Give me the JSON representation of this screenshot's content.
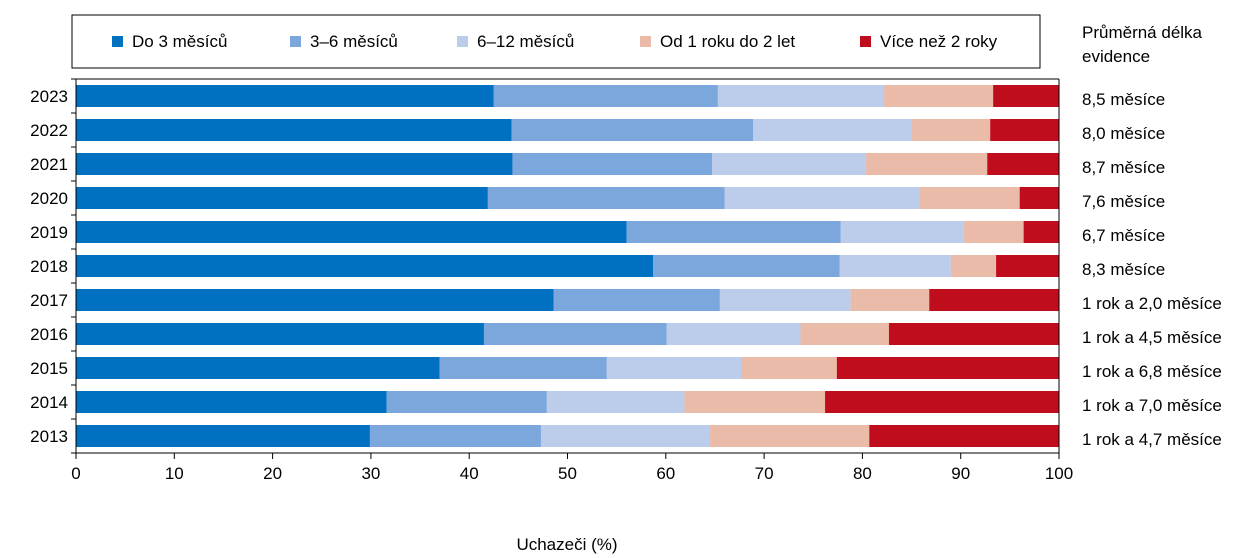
{
  "chart_data": {
    "type": "bar",
    "orientation": "horizontal",
    "stacked": true,
    "xlabel": "Uchazeči (%)",
    "xlim": [
      0,
      100
    ],
    "xticks": [
      0,
      10,
      20,
      30,
      40,
      50,
      60,
      70,
      80,
      90,
      100
    ],
    "legend_position": "top",
    "right_column_title": "Průměrná délka evidence",
    "categories": [
      "2023",
      "2022",
      "2021",
      "2020",
      "2019",
      "2018",
      "2017",
      "2016",
      "2015",
      "2014",
      "2013"
    ],
    "series": [
      {
        "name": "Do 3 měsíců",
        "color": "#0070c0",
        "values": [
          42.5,
          44.3,
          44.4,
          41.9,
          56.0,
          58.7,
          48.6,
          41.5,
          37.0,
          31.6,
          29.9
        ]
      },
      {
        "name": "3–6 měsíců",
        "color": "#7ba7dc",
        "values": [
          22.8,
          24.6,
          20.3,
          24.1,
          21.8,
          19.0,
          16.9,
          18.6,
          17.0,
          16.3,
          17.4
        ]
      },
      {
        "name": "6–12 měsíců",
        "color": "#bccceb",
        "values": [
          16.9,
          16.1,
          15.6,
          19.8,
          12.5,
          11.3,
          13.3,
          13.6,
          13.7,
          14.0,
          17.2
        ]
      },
      {
        "name": "Od 1 roku do 2 let",
        "color": "#ebbba9",
        "values": [
          11.1,
          8.0,
          12.4,
          10.2,
          6.1,
          4.6,
          8.0,
          9.0,
          9.7,
          14.3,
          16.2
        ]
      },
      {
        "name": "Více než 2 roky",
        "color": "#c00d1e",
        "values": [
          6.7,
          7.0,
          7.3,
          4.0,
          3.6,
          6.4,
          13.2,
          17.3,
          22.6,
          23.8,
          19.3
        ]
      }
    ],
    "right_labels": [
      "8,5 měsíce",
      "8,0 měsíce",
      "8,7 měsíce",
      "7,6 měsíce",
      "6,7 měsíce",
      "8,3 měsíce",
      "1 rok a 2,0 měsíce",
      "1 rok a 4,5 měsíce",
      "1 rok a 6,8 měsíce",
      "1 rok a 7,0 měsíce",
      "1 rok a 4,7 měsíce"
    ]
  }
}
